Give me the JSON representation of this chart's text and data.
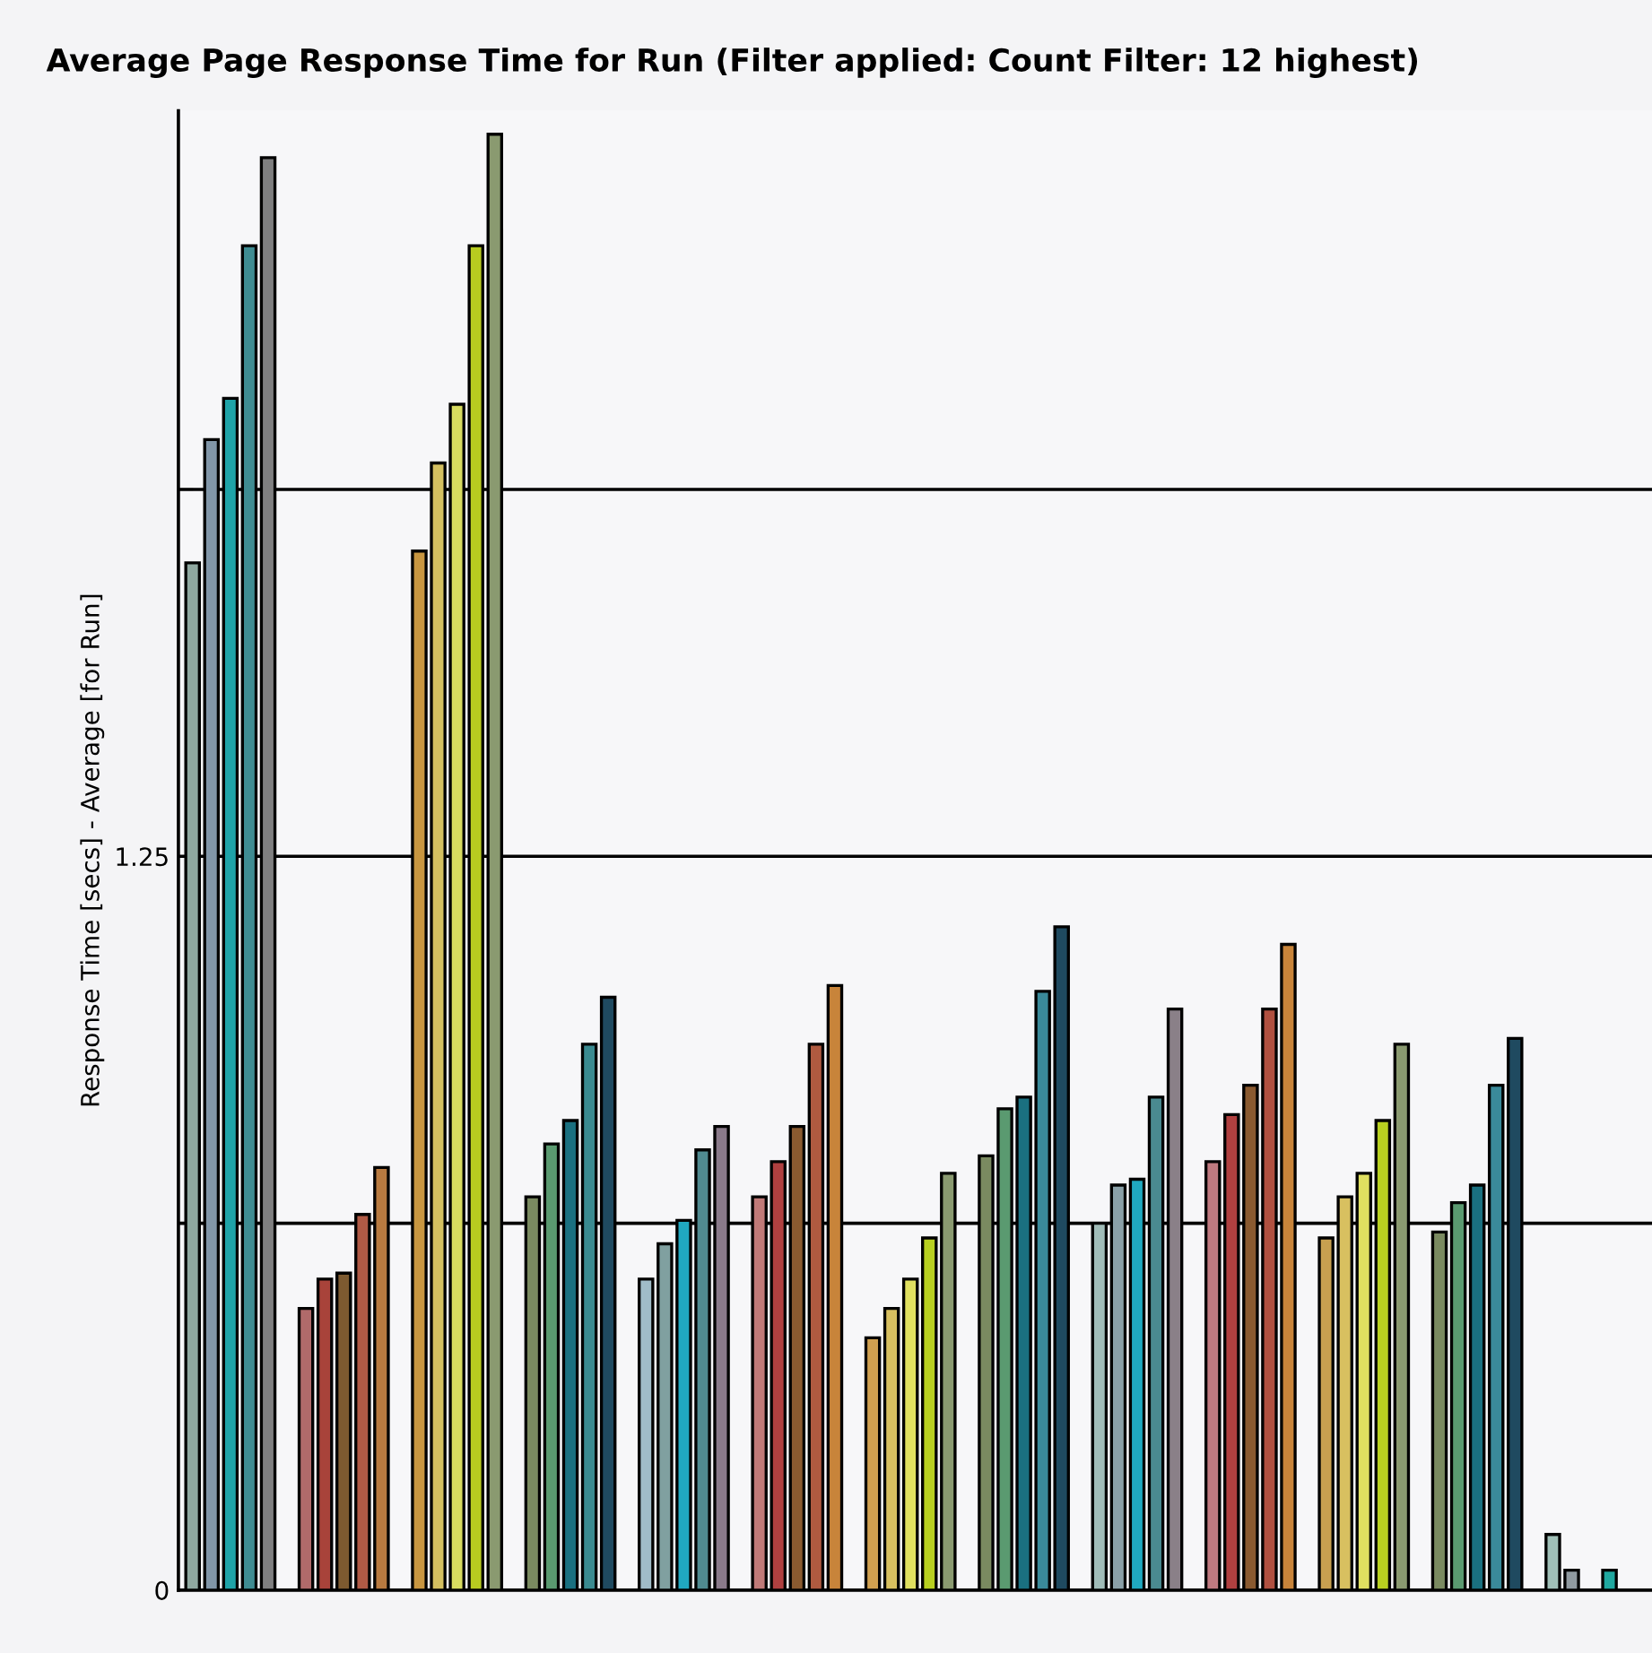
{
  "chart_data": {
    "type": "bar",
    "title": "Average Page Response Time for Run (Filter applied: Count Filter: 12 highest)",
    "ylabel": "Response Time [secs] - Average [for Run]",
    "categories": [
      null,
      null,
      null,
      null,
      null,
      null,
      null,
      null,
      null,
      null,
      null,
      null,
      null
    ],
    "series": [
      {
        "values": [
          1.75,
          0.48,
          1.77,
          0.67,
          0.53,
          0.67,
          0.43,
          0.74,
          0.625,
          0.73,
          0.6,
          0.61,
          0.095
        ],
        "colors": [
          "#8fa8a0",
          "#b06a6a",
          "#c89640",
          "#7a8a60",
          "#a0bcc8",
          "#c07a78",
          "#d0a050",
          "#7a8a60",
          "#a0bcb8",
          "#c07a80",
          "#c8a050",
          "#7a8a60",
          "#a0c0b8"
        ]
      },
      {
        "values": [
          1.96,
          0.53,
          1.92,
          0.76,
          0.59,
          0.73,
          0.48,
          0.82,
          0.69,
          0.81,
          0.67,
          0.66,
          0.034
        ],
        "colors": [
          "#8196a8",
          "#a8433a",
          "#d4c060",
          "#5a9a70",
          "#80a0a0",
          "#b04040",
          "#d8c060",
          "#5a9a70",
          "#8aa0a8",
          "#b04040",
          "#d8c060",
          "#5a9a70",
          "#909aa0"
        ]
      },
      {
        "values": [
          2.03,
          0.54,
          2.02,
          0.8,
          0.63,
          0.79,
          0.53,
          0.84,
          0.7,
          0.86,
          0.71,
          0.69,
          null
        ],
        "colors": [
          "#1fa3a8",
          "#7d5a30",
          "#d8dc60",
          "#1a7080",
          "#20a8c0",
          "#8a5a30",
          "#e0e060",
          "#1a7080",
          "#20a8c0",
          "#8a5a30",
          "#e0e060",
          "#1a7080",
          "#888888"
        ]
      },
      {
        "values": [
          2.29,
          0.64,
          2.29,
          0.93,
          0.75,
          0.93,
          0.6,
          1.02,
          0.84,
          0.99,
          0.8,
          0.86,
          0.034
        ],
        "colors": [
          "#3f8c92",
          "#b05a45",
          "#b8cc20",
          "#3a8a90",
          "#508a90",
          "#b05a40",
          "#b8d020",
          "#3a8a9a",
          "#4a8a90",
          "#b05040",
          "#b8d020",
          "#3a8a9a",
          "#20a8a0"
        ]
      },
      {
        "values": [
          2.44,
          0.72,
          2.48,
          1.01,
          0.79,
          1.03,
          0.71,
          1.13,
          0.99,
          1.1,
          0.93,
          0.94,
          null
        ],
        "colors": [
          "#7f7f80",
          "#b87a40",
          "#8a9a70",
          "#1f4a60",
          "#8a7a8a",
          "#c8843a",
          "#8a9a70",
          "#1f4a60",
          "#8a8088",
          "#c8843a",
          "#8a9a70",
          "#1f4a60",
          "#888888"
        ]
      }
    ],
    "ylim": [
      0,
      2.52
    ],
    "yticks": [
      0,
      {
        "value": 0.625,
        "label": null
      },
      1.25,
      {
        "value": 1.875,
        "label": null
      }
    ],
    "grid": "y"
  }
}
